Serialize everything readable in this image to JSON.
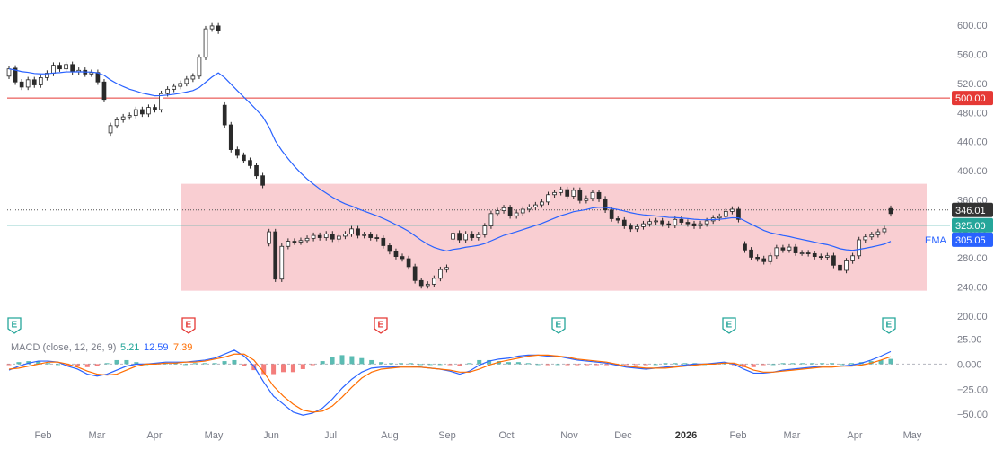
{
  "chart_data": {
    "type": "candlestick",
    "price_axis": {
      "ticks": [
        "600.00",
        "560.00",
        "520.00",
        "480.00",
        "440.00",
        "400.00",
        "360.00",
        "320.00",
        "280.00",
        "240.00",
        "200.00"
      ],
      "ylim": [
        200,
        610
      ]
    },
    "time_axis": {
      "labels": [
        {
          "text": "Feb",
          "bold": false
        },
        {
          "text": "Mar",
          "bold": false
        },
        {
          "text": "Apr",
          "bold": false
        },
        {
          "text": "May",
          "bold": false
        },
        {
          "text": "Jun",
          "bold": false
        },
        {
          "text": "Jul",
          "bold": false
        },
        {
          "text": "Aug",
          "bold": false
        },
        {
          "text": "Sep",
          "bold": false
        },
        {
          "text": "Oct",
          "bold": false
        },
        {
          "text": "Nov",
          "bold": false
        },
        {
          "text": "Dec",
          "bold": false
        },
        {
          "text": "2026",
          "bold": true
        },
        {
          "text": "Feb",
          "bold": false
        },
        {
          "text": "Mar",
          "bold": false
        },
        {
          "text": "Apr",
          "bold": false
        },
        {
          "text": "May",
          "bold": false
        }
      ]
    },
    "price_levels": [
      {
        "value": 500.0,
        "label": "500.00",
        "color": "#e53935",
        "style": "solid"
      },
      {
        "value": 346.01,
        "label": "346.01",
        "color": "#333333",
        "style": "dotted"
      },
      {
        "value": 325.0,
        "label": "325.00",
        "color": "#26a69a",
        "style": "solid"
      }
    ],
    "ema_label": {
      "name": "EMA",
      "value": "305.05",
      "color": "#2962ff"
    },
    "range_box": {
      "from": "Apr 2025",
      "to": "Apr 2026",
      "top": 382,
      "bottom": 235,
      "color": "#f8c5ca"
    },
    "candles": [
      [
        530,
        540
      ],
      [
        541,
        522
      ],
      [
        522,
        515
      ],
      [
        515,
        525
      ],
      [
        525,
        518
      ],
      [
        518,
        528
      ],
      [
        528,
        534
      ],
      [
        534,
        545
      ],
      [
        545,
        540
      ],
      [
        540,
        546
      ],
      [
        546,
        536
      ],
      [
        536,
        538
      ],
      [
        538,
        533
      ],
      [
        533,
        535
      ],
      [
        535,
        522
      ],
      [
        522,
        498
      ],
      [
        452,
        462
      ],
      [
        462,
        470
      ],
      [
        470,
        474
      ],
      [
        474,
        476
      ],
      [
        476,
        484
      ],
      [
        484,
        478
      ],
      [
        478,
        487
      ],
      [
        487,
        484
      ],
      [
        484,
        506
      ],
      [
        506,
        512
      ],
      [
        512,
        516
      ],
      [
        516,
        520
      ],
      [
        520,
        526
      ],
      [
        526,
        530
      ],
      [
        530,
        556
      ],
      [
        556,
        595
      ],
      [
        595,
        599
      ],
      [
        599,
        592
      ],
      [
        490,
        463
      ],
      [
        463,
        429
      ],
      [
        429,
        421
      ],
      [
        421,
        414
      ],
      [
        414,
        407
      ],
      [
        407,
        393
      ],
      [
        393,
        380
      ],
      [
        300,
        316
      ],
      [
        316,
        251
      ],
      [
        251,
        296
      ],
      [
        296,
        303
      ],
      [
        303,
        302
      ],
      [
        302,
        304
      ],
      [
        304,
        307
      ],
      [
        307,
        311
      ],
      [
        311,
        308
      ],
      [
        308,
        313
      ],
      [
        313,
        306
      ],
      [
        306,
        310
      ],
      [
        310,
        313
      ],
      [
        313,
        320
      ],
      [
        320,
        311
      ],
      [
        311,
        312
      ],
      [
        312,
        308
      ],
      [
        308,
        307
      ],
      [
        307,
        297
      ],
      [
        297,
        289
      ],
      [
        289,
        282
      ],
      [
        282,
        279
      ],
      [
        279,
        268
      ],
      [
        268,
        249
      ],
      [
        249,
        242
      ],
      [
        242,
        244
      ],
      [
        244,
        252
      ],
      [
        252,
        264
      ],
      [
        264,
        267
      ],
      [
        306,
        314
      ],
      [
        314,
        305
      ],
      [
        305,
        313
      ],
      [
        313,
        308
      ],
      [
        308,
        312
      ],
      [
        312,
        324
      ],
      [
        324,
        341
      ],
      [
        341,
        345
      ],
      [
        345,
        349
      ],
      [
        349,
        338
      ],
      [
        338,
        342
      ],
      [
        342,
        347
      ],
      [
        347,
        350
      ],
      [
        350,
        353
      ],
      [
        353,
        357
      ],
      [
        357,
        367
      ],
      [
        367,
        370
      ],
      [
        370,
        374
      ],
      [
        374,
        365
      ],
      [
        365,
        373
      ],
      [
        373,
        359
      ],
      [
        359,
        362
      ],
      [
        362,
        370
      ],
      [
        370,
        361
      ],
      [
        361,
        346
      ],
      [
        346,
        334
      ],
      [
        334,
        332
      ],
      [
        332,
        324
      ],
      [
        324,
        320
      ],
      [
        320,
        323
      ],
      [
        323,
        327
      ],
      [
        327,
        330
      ],
      [
        330,
        331
      ],
      [
        331,
        327
      ],
      [
        327,
        325
      ],
      [
        325,
        333
      ],
      [
        333,
        329
      ],
      [
        329,
        327
      ],
      [
        327,
        324
      ],
      [
        324,
        327
      ],
      [
        327,
        331
      ],
      [
        331,
        335
      ],
      [
        335,
        337
      ],
      [
        337,
        344
      ],
      [
        344,
        347
      ],
      [
        347,
        333
      ],
      [
        299,
        291
      ],
      [
        291,
        281
      ],
      [
        281,
        279
      ],
      [
        279,
        275
      ],
      [
        275,
        283
      ],
      [
        283,
        294
      ],
      [
        294,
        291
      ],
      [
        291,
        295
      ],
      [
        295,
        287
      ],
      [
        287,
        287
      ],
      [
        287,
        286
      ],
      [
        286,
        282
      ],
      [
        282,
        281
      ],
      [
        281,
        283
      ],
      [
        283,
        270
      ],
      [
        270,
        263
      ],
      [
        263,
        276
      ],
      [
        276,
        283
      ],
      [
        283,
        305
      ],
      [
        305,
        309
      ],
      [
        309,
        312
      ],
      [
        312,
        316
      ],
      [
        316,
        320
      ],
      [
        348,
        341
      ]
    ],
    "ema_label_text": "EMA",
    "macd": {
      "label": "MACD (close, 12, 26, 9)",
      "hist_value": "5.21",
      "macd_value": "12.59",
      "signal_value": "7.39",
      "hist_color": "#26a69a",
      "macd_color": "#2962ff",
      "signal_color": "#ff6d00",
      "ticks": [
        "25.00",
        "0.000",
        "−25.00",
        "−50.00"
      ],
      "ylim": [
        -58,
        30
      ],
      "macd_line": [
        -6,
        -2,
        1,
        3,
        3,
        2,
        -2,
        -5,
        -10,
        -12,
        -10,
        -6,
        -2,
        0,
        0,
        1,
        2,
        2,
        2,
        3,
        4,
        6,
        10,
        14,
        8,
        -2,
        -18,
        -32,
        -40,
        -48,
        -51,
        -49,
        -44,
        -35,
        -24,
        -15,
        -8,
        -4,
        -3,
        -3,
        -2,
        -2,
        -3,
        -4,
        -5,
        -7,
        -10,
        -7,
        -1,
        3,
        5,
        6,
        8,
        9,
        9,
        8,
        8,
        6,
        4,
        3,
        2,
        1,
        -1,
        -3,
        -4,
        -5,
        -4,
        -3,
        -2,
        -1,
        0,
        0,
        1,
        2,
        0,
        -5,
        -9,
        -9,
        -8,
        -6,
        -5,
        -4,
        -3,
        -2,
        -2,
        -2,
        -1,
        1,
        4,
        8,
        12.59
      ],
      "signal_line": [
        -5,
        -4,
        -2,
        0,
        2,
        2,
        0,
        -3,
        -7,
        -10,
        -11,
        -10,
        -6,
        -2,
        0,
        0,
        1,
        1,
        2,
        2,
        3,
        5,
        7,
        10,
        10,
        4,
        -8,
        -22,
        -32,
        -40,
        -46,
        -48,
        -47,
        -42,
        -33,
        -23,
        -14,
        -8,
        -5,
        -4,
        -3,
        -3,
        -3,
        -4,
        -5,
        -6,
        -8,
        -8,
        -5,
        -1,
        2,
        4,
        6,
        8,
        9,
        9,
        8,
        7,
        5,
        4,
        3,
        2,
        0,
        -2,
        -3,
        -4,
        -4,
        -4,
        -3,
        -2,
        -1,
        0,
        0,
        1,
        1,
        -2,
        -6,
        -8,
        -8,
        -7,
        -6,
        -5,
        -4,
        -3,
        -3,
        -2,
        -2,
        -1,
        1,
        4,
        7.39
      ]
    },
    "earnings_markers": [
      {
        "text": "E",
        "color": "#26a69a"
      },
      {
        "text": "E",
        "color": "#e53935"
      },
      {
        "text": "E",
        "color": "#e53935"
      },
      {
        "text": "E",
        "color": "#26a69a"
      },
      {
        "text": "E",
        "color": "#26a69a"
      },
      {
        "text": "E",
        "color": "#26a69a"
      }
    ]
  }
}
